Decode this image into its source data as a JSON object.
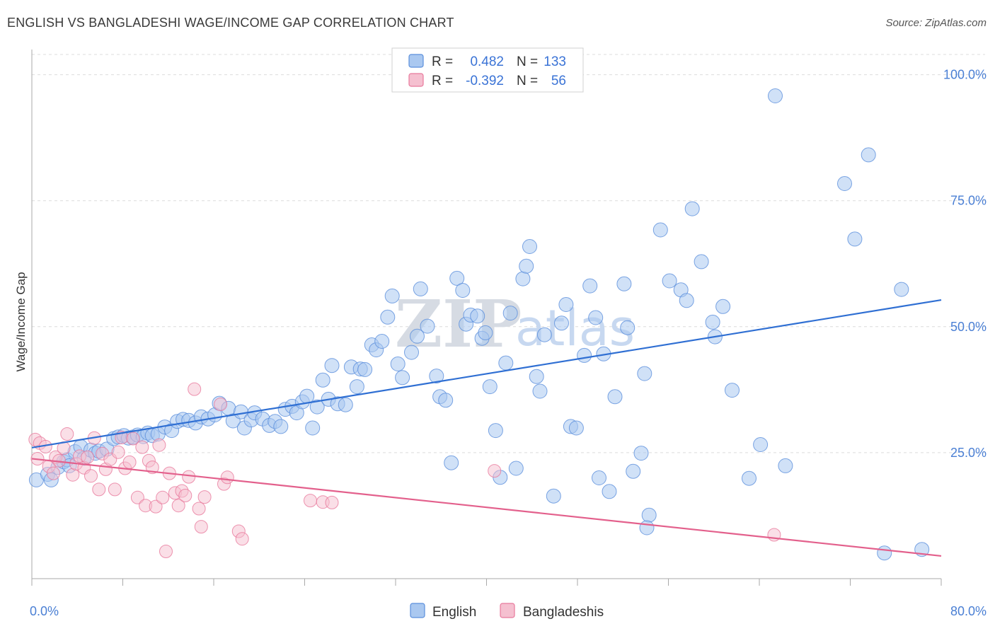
{
  "title": "ENGLISH VS BANGLADESHI WAGE/INCOME GAP CORRELATION CHART",
  "source": "Source: ZipAtlas.com",
  "watermark": {
    "zip": "ZIP",
    "atlas": "atlas"
  },
  "colors": {
    "english": "#5b8fdc",
    "english_fill": "#aac8f0",
    "bangladeshi": "#e8799c",
    "bangladeshi_fill": "#f5c0d0",
    "tick": "#4a7fd4"
  },
  "legend": {
    "rows": [
      {
        "label_r": "R =",
        "r": "0.482",
        "label_n": "N =",
        "n": "133"
      },
      {
        "label_r": "R =",
        "r": "-0.392",
        "label_n": "N =",
        "n": "56"
      }
    ]
  },
  "bottom_legend": [
    "English",
    "Bangladeshis"
  ],
  "chart_data": {
    "type": "scatter",
    "title": "ENGLISH VS BANGLADESHI WAGE/INCOME GAP CORRELATION CHART",
    "xlabel": "",
    "ylabel": "Wage/Income Gap",
    "xlim": [
      0,
      80
    ],
    "ylim": [
      0,
      105
    ],
    "x_tick_labels": [
      "0.0%",
      "80.0%"
    ],
    "y_ticks": [
      25,
      50,
      75,
      100
    ],
    "y_tick_labels": [
      "25.0%",
      "50.0%",
      "75.0%",
      "100.0%"
    ],
    "series": [
      {
        "name": "English",
        "r": 0.482,
        "n": 133,
        "trend": {
          "x": [
            0,
            80
          ],
          "y": [
            26.0,
            55.3
          ]
        },
        "points": [
          [
            0.4,
            19.6
          ],
          [
            1.4,
            20.7
          ],
          [
            1.7,
            19.6
          ],
          [
            2.3,
            22.1
          ],
          [
            2.8,
            23.2
          ],
          [
            3.1,
            23.6
          ],
          [
            3.3,
            22.4
          ],
          [
            3.8,
            25.2
          ],
          [
            4.3,
            26.2
          ],
          [
            4.6,
            23.9
          ],
          [
            5.2,
            25.5
          ],
          [
            5.6,
            24.9
          ],
          [
            5.9,
            25.3
          ],
          [
            6.6,
            25.7
          ],
          [
            7.2,
            27.8
          ],
          [
            7.6,
            28.1
          ],
          [
            8.1,
            28.4
          ],
          [
            8.5,
            27.9
          ],
          [
            8.9,
            28.1
          ],
          [
            9.3,
            28.5
          ],
          [
            9.8,
            28.2
          ],
          [
            10.2,
            28.9
          ],
          [
            10.6,
            28.4
          ],
          [
            11.1,
            28.7
          ],
          [
            11.7,
            30.1
          ],
          [
            12.3,
            29.4
          ],
          [
            12.8,
            31.2
          ],
          [
            13.3,
            31.6
          ],
          [
            13.8,
            31.4
          ],
          [
            14.4,
            30.9
          ],
          [
            14.9,
            32.1
          ],
          [
            15.5,
            31.7
          ],
          [
            16.1,
            32.5
          ],
          [
            16.5,
            34.8
          ],
          [
            17.3,
            33.8
          ],
          [
            17.7,
            31.3
          ],
          [
            18.4,
            33.1
          ],
          [
            18.7,
            29.9
          ],
          [
            19.3,
            31.5
          ],
          [
            19.6,
            32.9
          ],
          [
            20.3,
            31.7
          ],
          [
            20.9,
            30.4
          ],
          [
            21.4,
            31.2
          ],
          [
            21.9,
            30.2
          ],
          [
            22.3,
            33.6
          ],
          [
            22.9,
            34.2
          ],
          [
            23.3,
            32.9
          ],
          [
            23.8,
            35.1
          ],
          [
            24.2,
            36.2
          ],
          [
            24.7,
            29.9
          ],
          [
            25.1,
            34.1
          ],
          [
            25.6,
            39.4
          ],
          [
            26.1,
            35.6
          ],
          [
            26.4,
            42.3
          ],
          [
            26.9,
            34.7
          ],
          [
            27.6,
            34.5
          ],
          [
            28.1,
            42.0
          ],
          [
            28.6,
            38.1
          ],
          [
            28.9,
            41.6
          ],
          [
            29.3,
            41.5
          ],
          [
            29.9,
            46.4
          ],
          [
            30.3,
            45.4
          ],
          [
            30.8,
            47.1
          ],
          [
            31.3,
            51.9
          ],
          [
            31.7,
            56.1
          ],
          [
            32.2,
            42.6
          ],
          [
            32.6,
            39.9
          ],
          [
            33.4,
            44.9
          ],
          [
            33.9,
            48.1
          ],
          [
            34.2,
            57.5
          ],
          [
            34.8,
            50.1
          ],
          [
            35.6,
            40.2
          ],
          [
            35.9,
            36.1
          ],
          [
            36.4,
            35.4
          ],
          [
            36.9,
            23.0
          ],
          [
            37.4,
            59.6
          ],
          [
            37.9,
            57.2
          ],
          [
            38.2,
            50.5
          ],
          [
            38.6,
            52.3
          ],
          [
            39.2,
            52.1
          ],
          [
            39.6,
            47.7
          ],
          [
            39.9,
            48.8
          ],
          [
            40.3,
            38.1
          ],
          [
            40.8,
            29.4
          ],
          [
            41.2,
            20.1
          ],
          [
            41.7,
            42.8
          ],
          [
            42.1,
            52.7
          ],
          [
            42.6,
            21.9
          ],
          [
            43.2,
            59.5
          ],
          [
            43.5,
            62.0
          ],
          [
            43.8,
            65.9
          ],
          [
            44.4,
            40.1
          ],
          [
            44.7,
            37.2
          ],
          [
            45.1,
            48.4
          ],
          [
            45.9,
            16.4
          ],
          [
            46.6,
            50.7
          ],
          [
            47.0,
            54.4
          ],
          [
            47.4,
            30.2
          ],
          [
            47.9,
            29.9
          ],
          [
            48.6,
            44.3
          ],
          [
            49.1,
            58.1
          ],
          [
            49.6,
            51.8
          ],
          [
            49.9,
            20.0
          ],
          [
            50.3,
            44.6
          ],
          [
            50.8,
            17.3
          ],
          [
            51.3,
            36.1
          ],
          [
            52.1,
            58.5
          ],
          [
            52.4,
            49.8
          ],
          [
            52.9,
            21.3
          ],
          [
            53.6,
            24.9
          ],
          [
            53.9,
            40.7
          ],
          [
            54.3,
            12.6
          ],
          [
            54.1,
            10.1
          ],
          [
            55.3,
            69.2
          ],
          [
            56.1,
            59.1
          ],
          [
            57.1,
            57.3
          ],
          [
            57.6,
            55.2
          ],
          [
            58.1,
            73.4
          ],
          [
            58.9,
            62.9
          ],
          [
            59.9,
            50.9
          ],
          [
            60.1,
            48.0
          ],
          [
            60.8,
            54.0
          ],
          [
            61.6,
            37.4
          ],
          [
            63.1,
            19.9
          ],
          [
            64.1,
            26.6
          ],
          [
            65.4,
            95.8
          ],
          [
            66.3,
            22.4
          ],
          [
            71.5,
            78.4
          ],
          [
            72.4,
            67.4
          ],
          [
            73.6,
            84.1
          ],
          [
            75.0,
            5.1
          ],
          [
            76.5,
            57.4
          ],
          [
            78.3,
            5.8
          ]
        ]
      },
      {
        "name": "Bangladeshis",
        "r": -0.392,
        "n": 56,
        "trend": {
          "x": [
            0,
            80
          ],
          "y": [
            23.8,
            4.5
          ]
        },
        "points": [
          [
            0.3,
            27.6
          ],
          [
            0.5,
            23.8
          ],
          [
            0.7,
            26.9
          ],
          [
            1.2,
            26.2
          ],
          [
            1.5,
            22.3
          ],
          [
            1.9,
            20.9
          ],
          [
            2.1,
            24.1
          ],
          [
            2.4,
            23.4
          ],
          [
            2.8,
            25.9
          ],
          [
            3.1,
            28.7
          ],
          [
            3.6,
            20.6
          ],
          [
            3.9,
            22.8
          ],
          [
            4.2,
            24.3
          ],
          [
            4.6,
            22.0
          ],
          [
            4.9,
            24.1
          ],
          [
            5.2,
            20.4
          ],
          [
            5.5,
            27.9
          ],
          [
            5.9,
            17.7
          ],
          [
            6.2,
            24.8
          ],
          [
            6.5,
            21.7
          ],
          [
            6.9,
            23.7
          ],
          [
            7.3,
            17.7
          ],
          [
            7.6,
            25.1
          ],
          [
            7.9,
            28.0
          ],
          [
            8.2,
            21.9
          ],
          [
            8.6,
            23.1
          ],
          [
            8.9,
            27.8
          ],
          [
            9.3,
            16.1
          ],
          [
            9.7,
            26.1
          ],
          [
            10.0,
            14.5
          ],
          [
            10.3,
            23.4
          ],
          [
            10.6,
            22.1
          ],
          [
            10.9,
            14.3
          ],
          [
            11.2,
            26.5
          ],
          [
            11.5,
            16.1
          ],
          [
            11.8,
            5.4
          ],
          [
            12.1,
            20.9
          ],
          [
            12.6,
            17.0
          ],
          [
            12.9,
            14.5
          ],
          [
            13.2,
            17.4
          ],
          [
            13.5,
            16.5
          ],
          [
            13.8,
            20.2
          ],
          [
            14.3,
            37.6
          ],
          [
            14.7,
            13.9
          ],
          [
            14.9,
            10.3
          ],
          [
            15.2,
            16.2
          ],
          [
            16.6,
            34.6
          ],
          [
            16.9,
            18.8
          ],
          [
            17.2,
            20.1
          ],
          [
            18.2,
            9.4
          ],
          [
            18.5,
            7.9
          ],
          [
            24.5,
            15.5
          ],
          [
            25.6,
            15.2
          ],
          [
            26.4,
            15.1
          ],
          [
            40.7,
            21.4
          ],
          [
            65.3,
            8.7
          ]
        ]
      }
    ]
  }
}
